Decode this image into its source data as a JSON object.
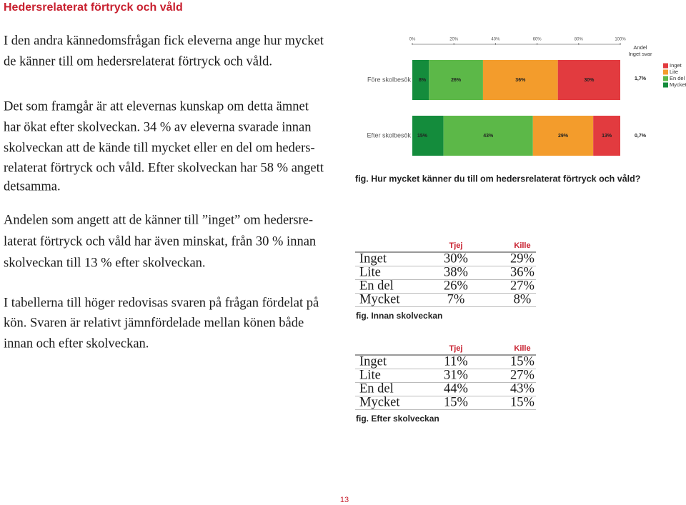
{
  "header": {
    "title": "Hedersrelaterat förtryck och våld"
  },
  "paragraphs": [
    [
      "I den andra kännedomsfrågan fick eleverna ange hur mycket",
      "de känner till om hedersrelaterat förtryck och våld."
    ],
    [
      "Det som framgår är att elevernas kunskap om detta ämnet",
      "har ökat efter skolveckan. 34 % av eleverna svarade innan",
      "skolveckan att de kände till mycket eller en del om heders-",
      "relaterat förtryck och våld. Efter skolveckan har 58 % angett",
      "detsamma."
    ],
    [
      "Andelen som angett att de känner till ”inget” om hedersre-",
      "laterat förtryck och våld har även minskat, från 30 % innan",
      "skolveckan till 13 % efter skolveckan."
    ],
    [
      "I tabellerna till höger redovisas svaren på frågan fördelat på",
      "kön. Svaren är relativt jämnfördelade mellan könen både",
      "innan och efter skolveckan."
    ]
  ],
  "chart_data": {
    "type": "stacked_barh",
    "categories": [
      "Före skolbesök",
      "Efter skolbesök"
    ],
    "series": [
      {
        "name": "Mycket",
        "color": "#148c3c",
        "values": [
          8,
          15
        ],
        "value_labels": [
          "8%",
          "15%"
        ]
      },
      {
        "name": "En del",
        "color": "#5cb848",
        "values": [
          26,
          43
        ],
        "value_labels": [
          "26%",
          "43%"
        ]
      },
      {
        "name": "Lite",
        "color": "#f39c2c",
        "values": [
          36,
          29
        ],
        "value_labels": [
          "36%",
          "29%"
        ]
      },
      {
        "name": "Inget",
        "color": "#e23b3f",
        "values": [
          30,
          13
        ],
        "value_labels": [
          "30%",
          "13%"
        ]
      }
    ],
    "xlim": [
      0,
      100
    ],
    "xticks": [
      {
        "value": 0,
        "label": "0%"
      },
      {
        "value": 20,
        "label": "20%"
      },
      {
        "value": 40,
        "label": "40%"
      },
      {
        "value": 60,
        "label": "60%"
      },
      {
        "value": 80,
        "label": "80%"
      },
      {
        "value": 100,
        "label": "100%"
      }
    ],
    "no_answer_title": [
      "Andel",
      "Inget svar"
    ],
    "no_answer_values": [
      1.7,
      0.7
    ],
    "no_answer_labels": [
      "1,7%",
      "0,7%"
    ],
    "caption": "fig. Hur mycket känner du till om hedersrelaterat förtryck och våld?"
  },
  "tables": [
    {
      "columns": [
        "Tjej",
        "Kille"
      ],
      "rows": [
        [
          "Inget",
          "30%",
          "29%"
        ],
        [
          "Lite",
          "38%",
          "36%"
        ],
        [
          "En del",
          "26%",
          "27%"
        ],
        [
          "Mycket",
          "7%",
          "8%"
        ]
      ],
      "caption": "fig. Innan skolveckan"
    },
    {
      "columns": [
        "Tjej",
        "Kille"
      ],
      "rows": [
        [
          "Inget",
          "11%",
          "15%"
        ],
        [
          "Lite",
          "31%",
          "27%"
        ],
        [
          "En del",
          "44%",
          "43%"
        ],
        [
          "Mycket",
          "15%",
          "15%"
        ]
      ],
      "caption": "fig. Efter skolveckan"
    }
  ],
  "footer": {
    "page": "13"
  }
}
